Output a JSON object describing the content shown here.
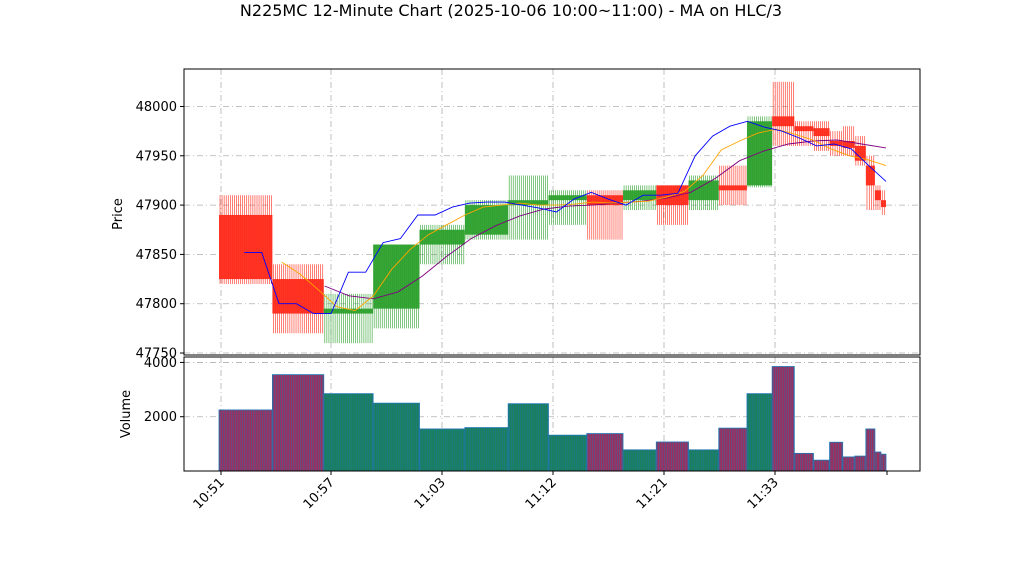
{
  "chart_data": {
    "type": "candlestick",
    "title": "N225MC 12-Minute Chart (2025-10-06 10:00~11:00) - MA on HLC/3",
    "ylabel_price": "Price",
    "ylabel_volume": "Volume",
    "price_ylim": [
      47748,
      48038
    ],
    "price_yticks": [
      47750,
      47800,
      47850,
      47900,
      47950,
      48000
    ],
    "volume_ylim": [
      0,
      4200
    ],
    "volume_yticks": [
      2000,
      4000
    ],
    "x_tick_labels": [
      "10:51",
      "10:57",
      "11:03",
      "11:12",
      "11:21",
      "11:33"
    ],
    "grid": true,
    "colors": {
      "up": "#2ca02c",
      "down": "#ff2a1a",
      "ma_fast": "#0000ff",
      "ma_mid": "#ffa500",
      "ma_slow": "#800080",
      "vol_edge": "#1f77b4"
    },
    "candles": [
      {
        "open": 47890,
        "high": 47910,
        "low": 47820,
        "close": 47825,
        "volume": 2250
      },
      {
        "open": 47825,
        "high": 47840,
        "low": 47770,
        "close": 47790,
        "volume": 3550
      },
      {
        "open": 47790,
        "high": 47810,
        "low": 47760,
        "close": 47795,
        "volume": 2850
      },
      {
        "open": 47795,
        "high": 47860,
        "low": 47775,
        "close": 47860,
        "volume": 2500
      },
      {
        "open": 47860,
        "high": 47880,
        "low": 47840,
        "close": 47875,
        "volume": 1550
      },
      {
        "open": 47870,
        "high": 47905,
        "low": 47865,
        "close": 47900,
        "volume": 1600
      },
      {
        "open": 47900,
        "high": 47930,
        "low": 47865,
        "close": 47905,
        "volume": 2480
      },
      {
        "open": 47905,
        "high": 47915,
        "low": 47880,
        "close": 47910,
        "volume": 1320
      },
      {
        "open": 47910,
        "high": 47915,
        "low": 47865,
        "close": 47900,
        "volume": 1380
      },
      {
        "open": 47905,
        "high": 47920,
        "low": 47895,
        "close": 47915,
        "volume": 780
      },
      {
        "open": 47920,
        "high": 47920,
        "low": 47880,
        "close": 47900,
        "volume": 1070
      },
      {
        "open": 47905,
        "high": 47930,
        "low": 47895,
        "close": 47925,
        "volume": 780
      },
      {
        "open": 47920,
        "high": 47940,
        "low": 47900,
        "close": 47915,
        "volume": 1580
      },
      {
        "open": 47920,
        "high": 47990,
        "low": 47918,
        "close": 47985,
        "volume": 2850
      },
      {
        "open": 47990,
        "high": 48025,
        "low": 47960,
        "close": 47980,
        "volume": 3850
      },
      {
        "open": 47980,
        "high": 47985,
        "low": 47960,
        "close": 47975,
        "volume": 650
      },
      {
        "open": 47978,
        "high": 47985,
        "low": 47955,
        "close": 47970,
        "volume": 400
      },
      {
        "open": 47965,
        "high": 47975,
        "low": 47950,
        "close": 47960,
        "volume": 1060
      },
      {
        "open": 47965,
        "high": 47980,
        "low": 47950,
        "close": 47958,
        "volume": 520
      },
      {
        "open": 47960,
        "high": 47970,
        "low": 47940,
        "close": 47945,
        "volume": 550
      },
      {
        "open": 47940,
        "high": 47950,
        "low": 47895,
        "close": 47920,
        "volume": 1550
      },
      {
        "open": 47915,
        "high": 47920,
        "low": 47895,
        "close": 47905,
        "volume": 700
      },
      {
        "open": 47905,
        "high": 47915,
        "low": 47890,
        "close": 47898,
        "volume": 620
      }
    ],
    "ma_fast": [
      null,
      47852,
      47852,
      47800,
      47800,
      47790,
      47790,
      47832,
      47832,
      47862,
      47866,
      47890,
      47890,
      47898,
      47902,
      47903,
      47903,
      47900,
      47897,
      47893,
      47906,
      47913,
      47906,
      47900,
      47910,
      47910,
      47912,
      47950,
      47970,
      47980,
      47985,
      47979,
      47975,
      47968,
      47960,
      47962,
      47957,
      47940,
      47924
    ],
    "ma_mid": [
      null,
      null,
      null,
      47842,
      47830,
      47814,
      47797,
      47793,
      47808,
      47835,
      47855,
      47870,
      47880,
      47890,
      47898,
      47900,
      47902,
      47900,
      47900,
      47901,
      47903,
      47902,
      47903,
      47904,
      47908,
      47914,
      47930,
      47956,
      47965,
      47973,
      47977,
      47972,
      47966,
      47957,
      47950,
      47946,
      47940
    ],
    "ma_slow": [
      null,
      null,
      null,
      null,
      47818,
      47808,
      47805,
      47812,
      47828,
      47848,
      47866,
      47879,
      47889,
      47896,
      47899,
      47900,
      47902,
      47904,
      47907,
      47913,
      47927,
      47945,
      47955,
      47962,
      47965,
      47966,
      47962,
      47958
    ]
  }
}
